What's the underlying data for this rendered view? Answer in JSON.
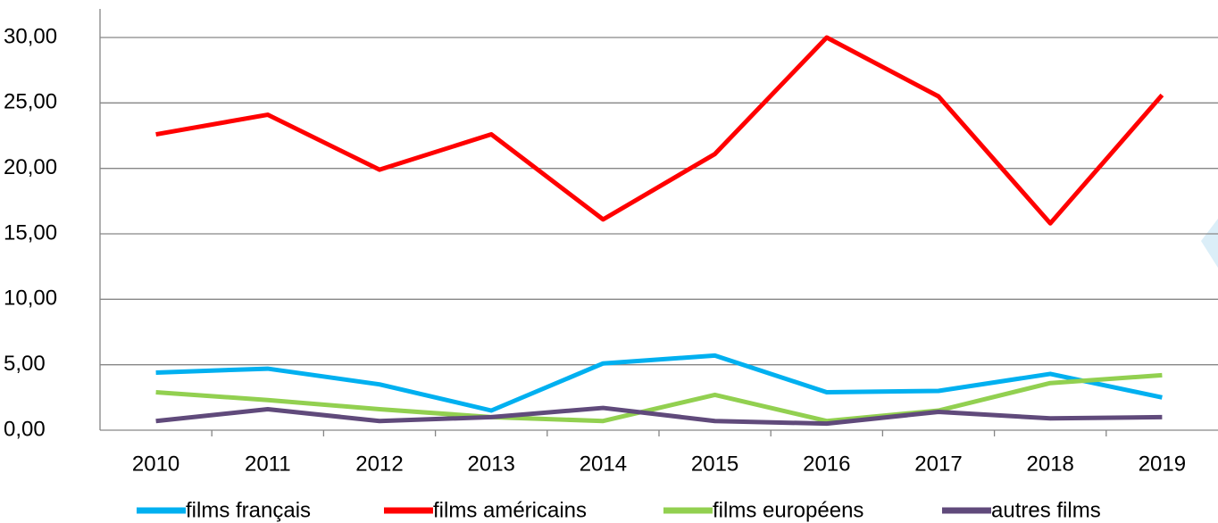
{
  "chart_data": {
    "type": "line",
    "categories": [
      "2010",
      "2011",
      "2012",
      "2013",
      "2014",
      "2015",
      "2016",
      "2017",
      "2018",
      "2019"
    ],
    "series": [
      {
        "name": "films français",
        "color": "#00b0f0",
        "values": [
          4.4,
          4.7,
          3.5,
          1.5,
          5.1,
          5.7,
          2.9,
          3.0,
          4.3,
          2.5
        ]
      },
      {
        "name": "films américains",
        "color": "#ff0000",
        "values": [
          22.6,
          24.1,
          19.9,
          22.6,
          16.1,
          21.1,
          30.0,
          25.5,
          15.8,
          25.6
        ]
      },
      {
        "name": "films européens",
        "color": "#92d050",
        "values": [
          2.9,
          2.3,
          1.6,
          1.0,
          0.7,
          2.7,
          0.7,
          1.5,
          3.6,
          4.2
        ]
      },
      {
        "name": "autres films",
        "color": "#604a7b",
        "values": [
          0.7,
          1.6,
          0.7,
          1.0,
          1.7,
          0.7,
          0.5,
          1.4,
          0.9,
          1.0
        ]
      }
    ],
    "ylim": [
      0,
      30
    ],
    "yticks": [
      {
        "value": 0,
        "label": "0,00"
      },
      {
        "value": 5,
        "label": "5,00"
      },
      {
        "value": 10,
        "label": "10,00"
      },
      {
        "value": 15,
        "label": "15,00"
      },
      {
        "value": 20,
        "label": "20,00"
      },
      {
        "value": 25,
        "label": "25,00"
      },
      {
        "value": 30,
        "label": "30,00"
      }
    ],
    "grid": true,
    "legend": "bottom"
  }
}
